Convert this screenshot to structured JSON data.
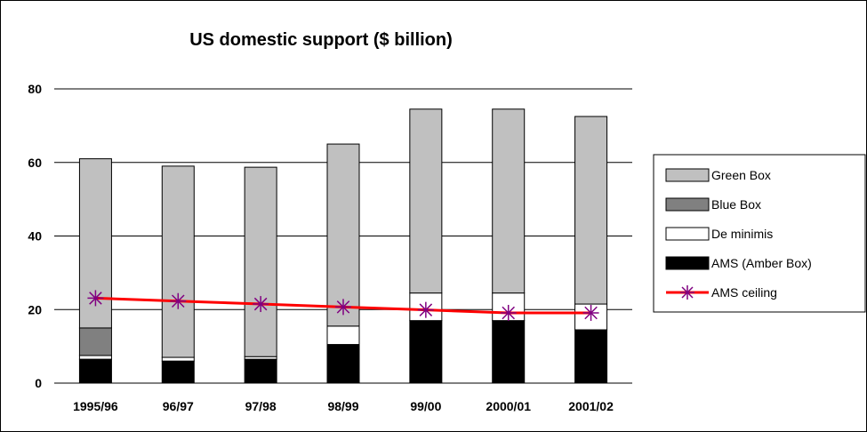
{
  "chart_data": {
    "type": "bar",
    "stacked": true,
    "title": "US domestic support ($ billion)",
    "xlabel": "",
    "ylabel": "",
    "categories": [
      "1995/96",
      "96/97",
      "97/98",
      "98/99",
      "99/00",
      "2000/01",
      "2001/02"
    ],
    "ylim": [
      0,
      80
    ],
    "yticks": [
      0,
      20,
      40,
      60,
      80
    ],
    "grid": true,
    "legend_position": "right",
    "series": [
      {
        "name": "AMS (Amber Box)",
        "color": "#000000",
        "values": [
          6.5,
          6.0,
          6.5,
          10.5,
          17.0,
          17.0,
          14.5
        ]
      },
      {
        "name": "De minimis",
        "color": "#ffffff",
        "values": [
          1.0,
          1.0,
          0.7,
          5.0,
          7.5,
          7.5,
          7.0
        ]
      },
      {
        "name": "Blue Box",
        "color": "#808080",
        "values": [
          7.5,
          0,
          0,
          0,
          0,
          0,
          0
        ]
      },
      {
        "name": "Green Box",
        "color": "#c0c0c0",
        "values": [
          46.0,
          52.0,
          51.5,
          49.5,
          50.0,
          50.0,
          51.0
        ]
      }
    ],
    "line_series": {
      "name": "AMS ceiling",
      "color": "#ff0000",
      "marker_color": "#800080",
      "values": [
        23.1,
        22.3,
        21.5,
        20.7,
        19.9,
        19.1,
        19.1
      ]
    },
    "legend_order": [
      "Green Box",
      "Blue Box",
      "De minimis",
      "AMS (Amber Box)",
      "AMS ceiling"
    ]
  }
}
